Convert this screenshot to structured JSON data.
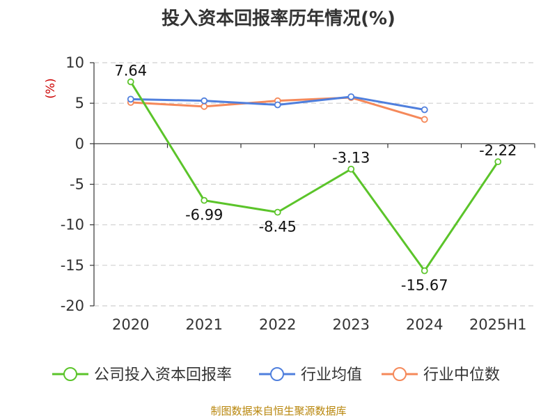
{
  "chart_data": {
    "type": "line",
    "title": "投入资本回报率历年情况(%)",
    "ylabel": "(%)",
    "categories": [
      "2020",
      "2021",
      "2022",
      "2023",
      "2024",
      "2025H1"
    ],
    "ylim": [
      -20,
      10
    ],
    "yticks": [
      10,
      5,
      0,
      -5,
      -10,
      -15,
      -20
    ],
    "grid": true,
    "legend_position": "bottom",
    "series": [
      {
        "name": "公司投入资本回报率",
        "color": "#5bc42a",
        "values": [
          7.64,
          -6.99,
          -8.45,
          -3.13,
          -15.67,
          -2.22
        ],
        "labels": [
          "7.64",
          "-6.99",
          "-8.45",
          "-3.13",
          "-15.67",
          "-2.22"
        ]
      },
      {
        "name": "行业均值",
        "color": "#4f7fdd",
        "values": [
          5.5,
          5.3,
          4.8,
          5.8,
          4.2,
          null
        ]
      },
      {
        "name": "行业中位数",
        "color": "#f5895a",
        "values": [
          5.1,
          4.6,
          5.3,
          5.7,
          3.0,
          null
        ]
      }
    ]
  },
  "source": "制图数据来自恒生聚源数据库"
}
